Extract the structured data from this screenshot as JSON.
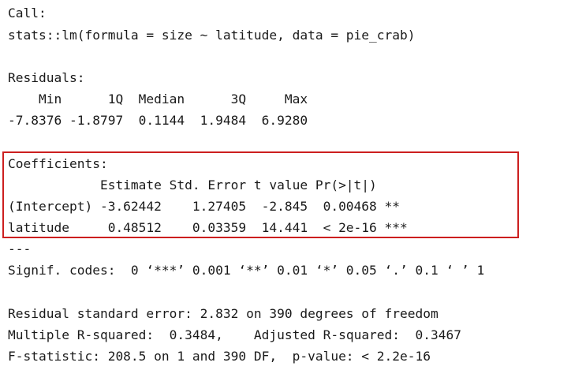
{
  "call": {
    "heading": "Call:",
    "formula": "stats::lm(formula = size ~ latitude, data = pie_crab)"
  },
  "residuals": {
    "heading": "Residuals:",
    "header_row": "    Min      1Q  Median      3Q     Max ",
    "values_row": "-7.8376 -1.8797  0.1144  1.9484  6.9280 "
  },
  "coefficients": {
    "heading": "Coefficients:",
    "header_row": "            Estimate Std. Error t value Pr(>|t|)    ",
    "rows": [
      "(Intercept) -3.62442    1.27405  -2.845  0.00468 ** ",
      "latitude     0.48512    0.03359  14.441  < 2e-16 ***"
    ]
  },
  "separator": "---",
  "signif_codes": "Signif. codes:  0 ‘***’ 0.001 ‘**’ 0.01 ‘*’ 0.05 ‘.’ 0.1 ‘ ’ 1",
  "model_stats": {
    "residual_se": "Residual standard error: 2.832 on 390 degrees of freedom",
    "r_squared": "Multiple R-squared:  0.3484,\tAdjusted R-squared:  0.3467 ",
    "f_statistic": "F-statistic: 208.5 on 1 and 390 DF,  p-value: < 2.2e-16"
  },
  "colors": {
    "text": "#1a1a1a",
    "highlight_border": "#cc1f1f",
    "background": "#ffffff"
  }
}
